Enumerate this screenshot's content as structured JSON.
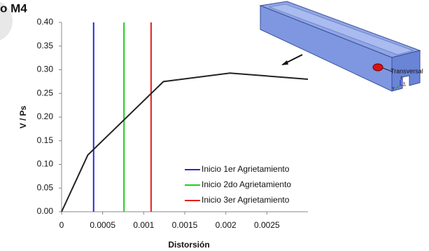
{
  "chart_data": {
    "type": "line",
    "title": "o M4",
    "xlabel": "Distorsión",
    "ylabel": "V / Ps",
    "xlim": [
      0,
      0.003
    ],
    "ylim": [
      0,
      0.4
    ],
    "xticks": [
      0,
      0.0005,
      0.001,
      0.0015,
      0.002,
      0.0025
    ],
    "yticks": [
      {
        "value": 0,
        "label": "0.00"
      },
      {
        "value": 0.05,
        "label": "0.05"
      },
      {
        "value": 0.1,
        "label": "0.10"
      },
      {
        "value": 0.15,
        "label": "0.15"
      },
      {
        "value": 0.2,
        "label": "0.20"
      },
      {
        "value": 0.25,
        "label": "0.25"
      },
      {
        "value": 0.3,
        "label": "0.30"
      },
      {
        "value": 0.35,
        "label": "0.35"
      },
      {
        "value": 0.4,
        "label": "0.40"
      }
    ],
    "series": [
      {
        "color": "#222222",
        "x": [
          0,
          0.00032,
          0.00124,
          0.00205,
          0.003
        ],
        "values": [
          0,
          0.12,
          0.275,
          0.293,
          0.28
        ]
      }
    ],
    "vlines": [
      {
        "name": "Inicio 1er Agrietamiento",
        "color": "#2a2ad0",
        "x": 0.00039
      },
      {
        "name": "Inicio 2do Agrietamiento",
        "color": "#22cc22",
        "x": 0.00076
      },
      {
        "name": "Inicio 3er Agrietamiento",
        "color": "#e02020",
        "x": 0.00109
      }
    ],
    "inset_labels": [
      "Transversal",
      "z",
      "x",
      "Y"
    ]
  }
}
